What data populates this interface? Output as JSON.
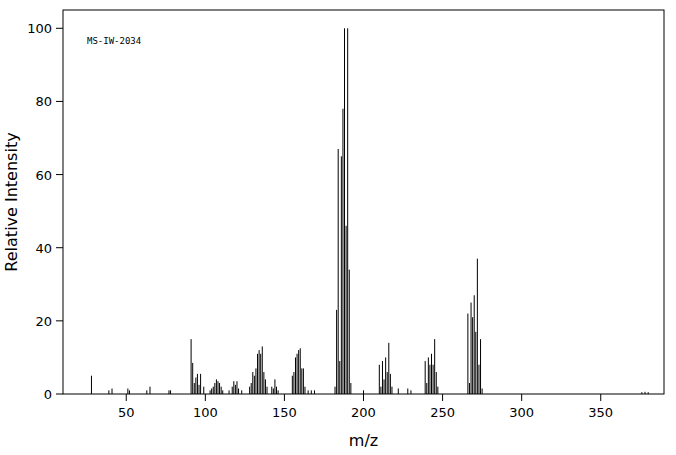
{
  "chart_data": {
    "type": "bar",
    "annotation": "MS-IW-2034",
    "x_label": "m/z",
    "y_label": "Relative Intensity",
    "x": [
      28,
      39,
      41,
      51,
      52,
      63,
      65,
      77,
      78,
      91,
      92,
      93,
      94,
      95,
      96,
      97,
      99,
      103,
      104,
      105,
      106,
      107,
      108,
      109,
      110,
      111,
      115,
      117,
      118,
      119,
      120,
      121,
      123,
      128,
      129,
      130,
      131,
      132,
      133,
      134,
      135,
      136,
      137,
      138,
      139,
      142,
      143,
      144,
      145,
      146,
      155,
      156,
      157,
      158,
      159,
      160,
      161,
      162,
      163,
      165,
      167,
      169,
      182,
      183,
      184,
      185,
      186,
      187,
      188,
      189,
      190,
      191,
      192,
      200,
      210,
      211,
      212,
      213,
      214,
      215,
      216,
      217,
      218,
      222,
      228,
      230,
      239,
      240,
      241,
      242,
      243,
      244,
      245,
      246,
      247,
      266,
      267,
      268,
      269,
      270,
      271,
      272,
      273,
      274,
      275,
      376,
      378,
      380
    ],
    "values": [
      5,
      1,
      1.5,
      1.5,
      1,
      1,
      2,
      1,
      1,
      15,
      8.5,
      3,
      4.5,
      5.5,
      2.5,
      5.5,
      2,
      1,
      1.5,
      2,
      3,
      4,
      3.5,
      3,
      2,
      1,
      1,
      2,
      3.5,
      2.5,
      3.5,
      1.5,
      1,
      2,
      3,
      6,
      5,
      7,
      11,
      12,
      11,
      13,
      6,
      4,
      2,
      2,
      1.5,
      4,
      2,
      1,
      5,
      6,
      10,
      11,
      12,
      12.5,
      7,
      7,
      2,
      1,
      1,
      1,
      2,
      23,
      67,
      9,
      65,
      78,
      100,
      46,
      100,
      34,
      3,
      1,
      8,
      2,
      9,
      4,
      10,
      6,
      14,
      5.5,
      2,
      1.5,
      1.5,
      1,
      9,
      3,
      10,
      8,
      11,
      8,
      15,
      6,
      2,
      22,
      3,
      25,
      21,
      27,
      17,
      37,
      8,
      15,
      1.5,
      0.5,
      0.6,
      0.5
    ],
    "color": "#000000",
    "xlim": [
      10,
      390
    ],
    "ylim": [
      0,
      105
    ],
    "xticks": [
      50,
      100,
      150,
      200,
      250,
      300,
      350
    ],
    "yticks": [
      0,
      20,
      40,
      60,
      80,
      100
    ],
    "grid": false
  }
}
